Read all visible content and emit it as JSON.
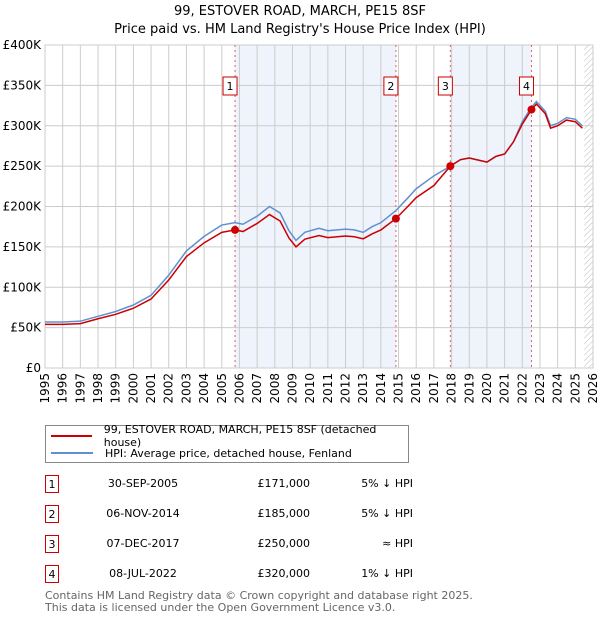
{
  "title": "99, ESTOVER ROAD, MARCH, PE15 8SF",
  "subtitle": "Price paid vs. HM Land Registry's House Price Index (HPI)",
  "legend": {
    "red": "99, ESTOVER ROAD, MARCH, PE15 8SF (detached house)",
    "blue": "HPI: Average price, detached house, Fenland"
  },
  "sales": [
    {
      "n": "1",
      "date": "30-SEP-2005",
      "price": "£171,000",
      "hpi": "5% ↓ HPI"
    },
    {
      "n": "2",
      "date": "06-NOV-2014",
      "price": "£185,000",
      "hpi": "5% ↓ HPI"
    },
    {
      "n": "3",
      "date": "07-DEC-2017",
      "price": "£250,000",
      "hpi": "≈ HPI"
    },
    {
      "n": "4",
      "date": "08-JUL-2022",
      "price": "£320,000",
      "hpi": "1% ↓ HPI"
    }
  ],
  "footer": [
    "Contains HM Land Registry data © Crown copyright and database right 2025.",
    "This data is licensed under the Open Government Licence v3.0."
  ],
  "chart_data": {
    "type": "line",
    "xlim": [
      1995,
      2026
    ],
    "ylim": [
      0,
      400000
    ],
    "yticks": [
      0,
      50000,
      100000,
      150000,
      200000,
      250000,
      300000,
      350000,
      400000
    ],
    "ytick_labels": [
      "£0",
      "£50K",
      "£100K",
      "£150K",
      "£200K",
      "£250K",
      "£300K",
      "£350K",
      "£400K"
    ],
    "xticks": [
      1995,
      1996,
      1997,
      1998,
      1999,
      2000,
      2001,
      2002,
      2003,
      2004,
      2005,
      2006,
      2007,
      2008,
      2009,
      2010,
      2011,
      2012,
      2013,
      2014,
      2015,
      2016,
      2017,
      2018,
      2019,
      2020,
      2021,
      2022,
      2023,
      2024,
      2025,
      2026
    ],
    "colors": {
      "red": "#cc0000",
      "blue": "#6090d0",
      "shade": "#eef3fc"
    },
    "sale_points": [
      [
        2005.75,
        171000
      ],
      [
        2014.85,
        185000
      ],
      [
        2017.93,
        250000
      ],
      [
        2022.52,
        320000
      ]
    ],
    "shaded": [
      [
        2005.75,
        2014.85
      ],
      [
        2017.93,
        2022.52
      ]
    ],
    "hatch_from": 2025.5,
    "series": [
      {
        "name": "HPI: Average price, detached house, Fenland",
        "color": "#6090d0",
        "x": [
          1995,
          1996,
          1997,
          1998,
          1999,
          2000,
          2001,
          2002,
          2003,
          2004,
          2005,
          2005.75,
          2006.2,
          2007,
          2007.7,
          2008.3,
          2008.8,
          2009.2,
          2009.7,
          2010.5,
          2011,
          2012,
          2012.5,
          2013,
          2013.5,
          2014,
          2014.85,
          2015.5,
          2016,
          2017,
          2017.93,
          2018.5,
          2019,
          2020,
          2020.5,
          2021,
          2021.5,
          2022,
          2022.52,
          2022.8,
          2023.3,
          2023.6,
          2024,
          2024.5,
          2025,
          2025.4
        ],
        "y": [
          57000,
          57000,
          58000,
          64000,
          70000,
          78000,
          90000,
          115000,
          145000,
          163000,
          177000,
          180000,
          178000,
          188000,
          200000,
          192000,
          170000,
          158000,
          168000,
          173000,
          170000,
          172000,
          171000,
          168000,
          175000,
          180000,
          195000,
          210000,
          222000,
          238000,
          250000,
          258000,
          260000,
          255000,
          262000,
          265000,
          280000,
          305000,
          323000,
          330000,
          318000,
          300000,
          303000,
          310000,
          308000,
          300000
        ]
      },
      {
        "name": "99, ESTOVER ROAD, MARCH, PE15 8SF (detached house)",
        "color": "#cc0000",
        "x": [
          1995,
          1996,
          1997,
          1998,
          1999,
          2000,
          2001,
          2002,
          2003,
          2004,
          2005,
          2005.75,
          2006.2,
          2007,
          2007.7,
          2008.3,
          2008.8,
          2009.2,
          2009.7,
          2010.5,
          2011,
          2012,
          2012.5,
          2013,
          2013.5,
          2014,
          2014.85,
          2015.5,
          2016,
          2017,
          2017.93,
          2018.5,
          2019,
          2020,
          2020.5,
          2021,
          2021.5,
          2022,
          2022.52,
          2022.8,
          2023.3,
          2023.6,
          2024,
          2024.5,
          2025,
          2025.4
        ],
        "y": [
          54000,
          54000,
          55000,
          61000,
          66500,
          74000,
          85500,
          109000,
          138000,
          155000,
          168000,
          171000,
          169000,
          179000,
          190000,
          182000,
          161000,
          150000,
          159500,
          164000,
          161500,
          163500,
          162500,
          160000,
          166000,
          171000,
          185000,
          199500,
          211000,
          226000,
          250000,
          258000,
          260000,
          255000,
          262000,
          265000,
          280000,
          302000,
          320000,
          327000,
          315000,
          297000,
          300000,
          307000,
          305000,
          297000
        ]
      }
    ]
  }
}
